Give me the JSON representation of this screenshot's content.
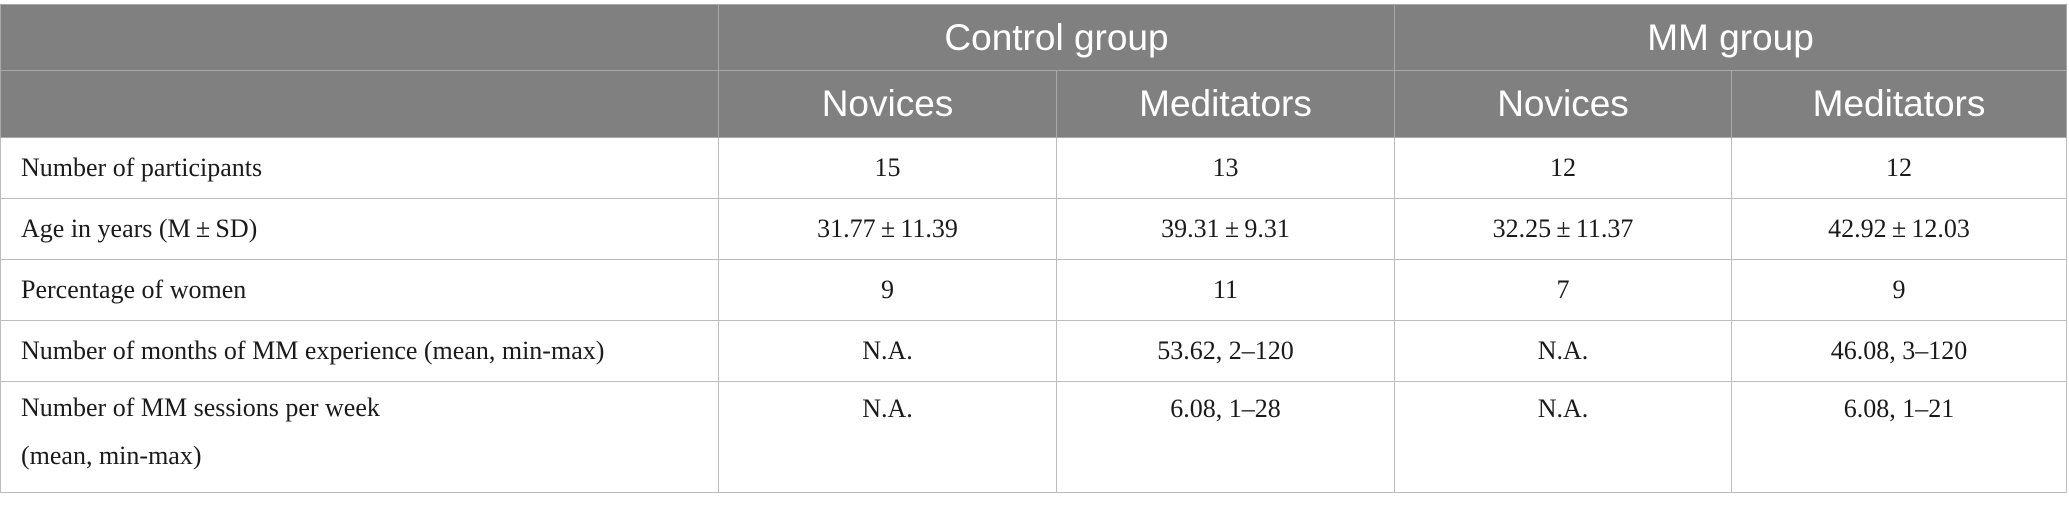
{
  "header": {
    "groups": [
      "Control group",
      "MM group"
    ],
    "subheaders": [
      "Novices",
      "Meditators",
      "Novices",
      "Meditators"
    ]
  },
  "rows": [
    {
      "label": "Number of participants",
      "values": [
        "15",
        "13",
        "12",
        "12"
      ]
    },
    {
      "label": "Age in years (M ± SD)",
      "values": [
        "31.77 ± 11.39",
        "39.31 ± 9.31",
        "32.25 ± 11.37",
        "42.92 ± 12.03"
      ]
    },
    {
      "label": "Percentage of women",
      "values": [
        "9",
        "11",
        "7",
        "9"
      ]
    },
    {
      "label": "Number of months of MM experience (mean, min-max)",
      "values": [
        "N.A.",
        "53.62, 2–120",
        "N.A.",
        "46.08, 3–120"
      ]
    },
    {
      "label_line1": "Number of MM sessions per week",
      "label_line2": "(mean, min-max)",
      "values": [
        "N.A.",
        "6.08, 1–28",
        "N.A.",
        "6.08, 1–21"
      ]
    }
  ]
}
